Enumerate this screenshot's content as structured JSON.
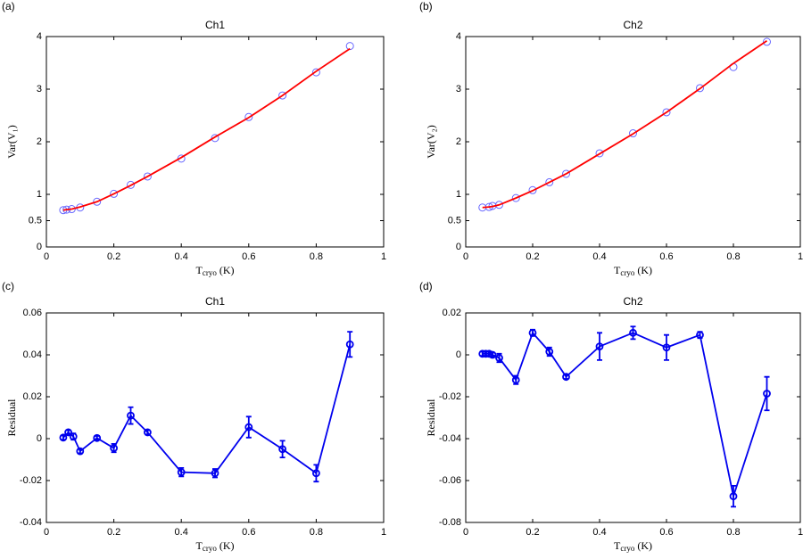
{
  "chart_data": [
    {
      "type": "scatter",
      "panel": "(a)",
      "title": "Ch1",
      "ylabel": "Var(V₁)",
      "xlabel": {
        "main": "T",
        "sub": "cryo",
        "unit": "(K)"
      },
      "x": [
        0.05,
        0.06,
        0.075,
        0.1,
        0.15,
        0.2,
        0.25,
        0.3,
        0.4,
        0.5,
        0.6,
        0.7,
        0.8,
        0.9
      ],
      "series": [
        {
          "style": "circle",
          "color": "#6666ff",
          "values": [
            0.7,
            0.71,
            0.72,
            0.75,
            0.86,
            1.01,
            1.18,
            1.34,
            1.68,
            2.07,
            2.47,
            2.88,
            3.32,
            3.82
          ]
        },
        {
          "style": "line",
          "color": "#ff0000",
          "values": [
            0.7,
            0.71,
            0.72,
            0.76,
            0.86,
            1.01,
            1.17,
            1.34,
            1.7,
            2.09,
            2.46,
            2.88,
            3.34,
            3.77
          ]
        }
      ],
      "xlim": [
        0,
        1
      ],
      "xticks": [
        0,
        0.2,
        0.4,
        0.6,
        0.8,
        1
      ],
      "ylim": [
        0,
        4
      ],
      "yticks": [
        0,
        0.5,
        1,
        2,
        3,
        4
      ]
    },
    {
      "type": "scatter",
      "panel": "(b)",
      "title": "Ch2",
      "ylabel": "Var(V₂)",
      "xlabel": {
        "main": "T",
        "sub": "cryo",
        "unit": "(K)"
      },
      "x": [
        0.05,
        0.07,
        0.08,
        0.1,
        0.15,
        0.2,
        0.25,
        0.3,
        0.4,
        0.5,
        0.6,
        0.7,
        0.8,
        0.9
      ],
      "series": [
        {
          "style": "circle",
          "color": "#6666ff",
          "values": [
            0.75,
            0.76,
            0.78,
            0.8,
            0.93,
            1.08,
            1.23,
            1.39,
            1.78,
            2.16,
            2.56,
            3.02,
            3.42,
            3.9
          ]
        },
        {
          "style": "line",
          "color": "#ff0000",
          "values": [
            0.75,
            0.76,
            0.77,
            0.8,
            0.93,
            1.07,
            1.23,
            1.39,
            1.77,
            2.15,
            2.56,
            3.01,
            3.49,
            3.92
          ]
        }
      ],
      "xlim": [
        0,
        1
      ],
      "xticks": [
        0,
        0.2,
        0.4,
        0.6,
        0.8,
        1
      ],
      "ylim": [
        0,
        4
      ],
      "yticks": [
        0,
        0.5,
        1,
        2,
        3,
        4
      ]
    },
    {
      "type": "errorbar",
      "panel": "(c)",
      "title": "Ch1",
      "ylabel": "Residual",
      "xlabel": {
        "main": "T",
        "sub": "cryo",
        "unit": "(K)"
      },
      "x": [
        0.05,
        0.065,
        0.08,
        0.1,
        0.15,
        0.2,
        0.25,
        0.3,
        0.4,
        0.5,
        0.6,
        0.7,
        0.8,
        0.9
      ],
      "series": [
        {
          "style": "errorline",
          "color": "#0000ee",
          "values": [
            0.0005,
            0.003,
            0.001,
            -0.006,
            0.0003,
            -0.0045,
            0.011,
            0.003,
            -0.016,
            -0.0165,
            0.0055,
            -0.005,
            -0.0165,
            0.045
          ],
          "errors": [
            0.001,
            0.001,
            0.0015,
            0.001,
            0.001,
            0.002,
            0.004,
            0.001,
            0.002,
            0.002,
            0.005,
            0.004,
            0.004,
            0.006
          ]
        }
      ],
      "xlim": [
        0,
        1
      ],
      "xticks": [
        0,
        0.2,
        0.4,
        0.6,
        0.8,
        1
      ],
      "ylim": [
        -0.04,
        0.06
      ],
      "yticks": [
        -0.04,
        -0.02,
        0,
        0.02,
        0.04,
        0.06
      ]
    },
    {
      "type": "errorbar",
      "panel": "(d)",
      "title": "Ch2",
      "ylabel": "Residual",
      "xlabel": {
        "main": "T",
        "sub": "cryo",
        "unit": "(K)"
      },
      "x": [
        0.05,
        0.06,
        0.07,
        0.08,
        0.1,
        0.15,
        0.2,
        0.25,
        0.3,
        0.4,
        0.5,
        0.6,
        0.7,
        0.8,
        0.9
      ],
      "series": [
        {
          "style": "errorline",
          "color": "#0000ee",
          "values": [
            0.0005,
            0.0005,
            0.0005,
            0,
            -0.0015,
            -0.012,
            0.0105,
            0.0015,
            -0.0105,
            0.004,
            0.0105,
            0.0035,
            0.0095,
            -0.0675,
            -0.0185
          ],
          "errors": [
            0.001,
            0.001,
            0.001,
            0.001,
            0.002,
            0.002,
            0.0015,
            0.002,
            0.001,
            0.0065,
            0.003,
            0.006,
            0.0015,
            0.005,
            0.008
          ]
        }
      ],
      "xlim": [
        0,
        1
      ],
      "xticks": [
        0,
        0.2,
        0.4,
        0.6,
        0.8,
        1
      ],
      "ylim": [
        -0.08,
        0.02
      ],
      "yticks": [
        -0.08,
        -0.06,
        -0.04,
        -0.02,
        0,
        0.02
      ]
    }
  ]
}
